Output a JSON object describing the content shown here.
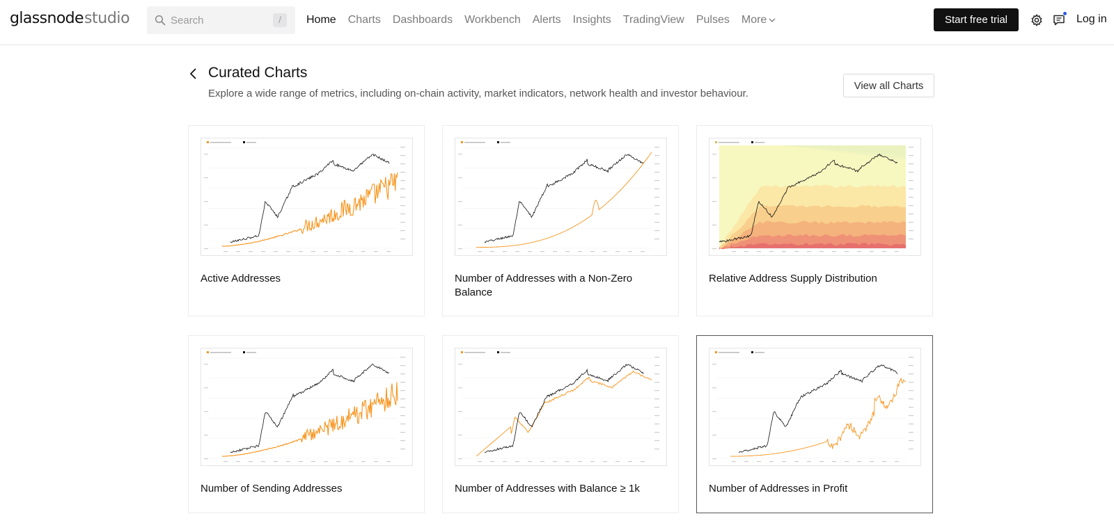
{
  "header": {
    "brand": "glassnode",
    "product": "studio",
    "search_placeholder": "Search",
    "search_shortcut": "/",
    "nav": [
      {
        "label": "Home",
        "active": true
      },
      {
        "label": "Charts"
      },
      {
        "label": "Dashboards"
      },
      {
        "label": "Workbench"
      },
      {
        "label": "Alerts"
      },
      {
        "label": "Insights"
      },
      {
        "label": "TradingView"
      },
      {
        "label": "Pulses"
      }
    ],
    "more_label": "More",
    "cta_label": "Start free trial",
    "login_label": "Log in",
    "icons": {
      "search": "search-icon",
      "settings": "gear-icon",
      "pulses": "chat-icon",
      "back": "chevron-left-icon",
      "more": "chevron-down-icon"
    },
    "colors": {
      "cta_bg": "#111111",
      "notification_dot": "#2b5ce6"
    }
  },
  "page": {
    "title": "Curated Charts",
    "subtitle": "Explore a wide range of metrics, including on-chain activity, market indicators, network health and investor behaviour.",
    "view_all_label": "View all Charts"
  },
  "cards": [
    {
      "title": "Active Addresses",
      "style": "noisy",
      "selected": false
    },
    {
      "title": "Number of Addresses with a Non-Zero Balance",
      "style": "smooth",
      "selected": false
    },
    {
      "title": "Relative Address Supply Distribution",
      "style": "bands",
      "selected": false
    },
    {
      "title": "Number of Sending Addresses",
      "style": "noisy",
      "selected": false
    },
    {
      "title": "Number of Addresses with Balance ≥ 1k",
      "style": "track",
      "selected": false
    },
    {
      "title": "Number of Addresses in Profit",
      "style": "profit",
      "selected": true
    }
  ],
  "colors": {
    "price_line": "#111111",
    "metric_line": "#f7931a"
  }
}
